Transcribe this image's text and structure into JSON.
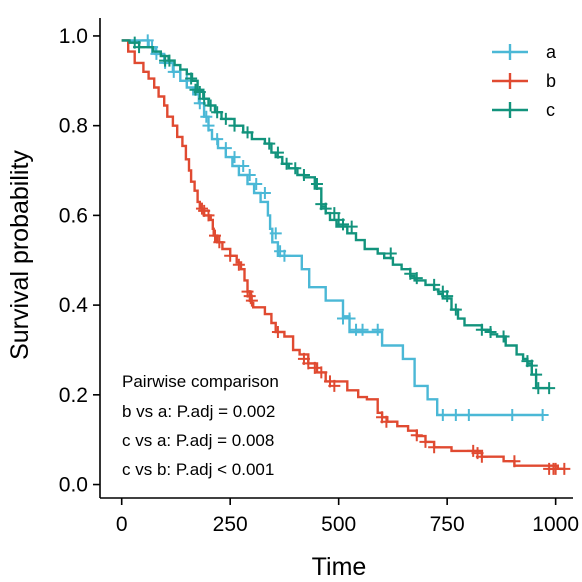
{
  "chart_data": {
    "type": "line",
    "title": "",
    "xlabel": "Time",
    "ylabel": "Survival probability",
    "xlim": [
      -50,
      1040
    ],
    "ylim": [
      -0.03,
      1.04
    ],
    "x_ticks": [
      0,
      250,
      500,
      750,
      1000
    ],
    "x_tick_labels": [
      "0",
      "250",
      "500",
      "750",
      "1000"
    ],
    "y_ticks": [
      0.0,
      0.2,
      0.4,
      0.6,
      0.8,
      1.0
    ],
    "y_tick_labels": [
      "0.0",
      "0.2",
      "0.4",
      "0.6",
      "0.8",
      "1.0"
    ],
    "grid": false,
    "legend_position": "top-right",
    "colors": {
      "a": "#4bb8d6",
      "b": "#e04a31",
      "c": "#12937c",
      "axis": "#000000"
    },
    "series": [
      {
        "name": "a",
        "color": "#4bb8d6",
        "steps": [
          [
            0,
            0.99
          ],
          [
            62,
            0.975
          ],
          [
            78,
            0.96
          ],
          [
            98,
            0.94
          ],
          [
            118,
            0.92
          ],
          [
            135,
            0.9
          ],
          [
            150,
            0.885
          ],
          [
            165,
            0.87
          ],
          [
            178,
            0.85
          ],
          [
            190,
            0.82
          ],
          [
            200,
            0.79
          ],
          [
            208,
            0.77
          ],
          [
            222,
            0.75
          ],
          [
            240,
            0.73
          ],
          [
            255,
            0.71
          ],
          [
            270,
            0.69
          ],
          [
            290,
            0.67
          ],
          [
            305,
            0.65
          ],
          [
            320,
            0.63
          ],
          [
            337,
            0.6
          ],
          [
            342,
            0.57
          ],
          [
            347,
            0.54
          ],
          [
            360,
            0.51
          ],
          [
            415,
            0.48
          ],
          [
            432,
            0.44
          ],
          [
            470,
            0.41
          ],
          [
            510,
            0.375
          ],
          [
            525,
            0.34
          ],
          [
            600,
            0.31
          ],
          [
            648,
            0.28
          ],
          [
            675,
            0.22
          ],
          [
            705,
            0.19
          ],
          [
            727,
            0.155
          ],
          [
            970,
            0.155
          ]
        ],
        "censor": [
          [
            60,
            0.99
          ],
          [
            70,
            0.975
          ],
          [
            80,
            0.96
          ],
          [
            100,
            0.94
          ],
          [
            120,
            0.92
          ],
          [
            150,
            0.9
          ],
          [
            180,
            0.85
          ],
          [
            195,
            0.82
          ],
          [
            200,
            0.8
          ],
          [
            220,
            0.77
          ],
          [
            240,
            0.75
          ],
          [
            260,
            0.73
          ],
          [
            280,
            0.71
          ],
          [
            295,
            0.69
          ],
          [
            310,
            0.67
          ],
          [
            330,
            0.65
          ],
          [
            355,
            0.56
          ],
          [
            365,
            0.52
          ],
          [
            375,
            0.51
          ],
          [
            510,
            0.37
          ],
          [
            525,
            0.37
          ],
          [
            540,
            0.345
          ],
          [
            555,
            0.345
          ],
          [
            590,
            0.345
          ],
          [
            740,
            0.155
          ],
          [
            770,
            0.155
          ],
          [
            800,
            0.155
          ],
          [
            900,
            0.155
          ],
          [
            970,
            0.155
          ]
        ]
      },
      {
        "name": "b",
        "color": "#e04a31",
        "steps": [
          [
            0,
            0.99
          ],
          [
            15,
            0.965
          ],
          [
            30,
            0.94
          ],
          [
            50,
            0.92
          ],
          [
            62,
            0.905
          ],
          [
            75,
            0.885
          ],
          [
            85,
            0.865
          ],
          [
            98,
            0.845
          ],
          [
            105,
            0.82
          ],
          [
            118,
            0.8
          ],
          [
            128,
            0.775
          ],
          [
            140,
            0.755
          ],
          [
            148,
            0.725
          ],
          [
            155,
            0.7
          ],
          [
            160,
            0.675
          ],
          [
            168,
            0.655
          ],
          [
            175,
            0.63
          ],
          [
            180,
            0.615
          ],
          [
            190,
            0.6
          ],
          [
            205,
            0.59
          ],
          [
            210,
            0.57
          ],
          [
            212,
            0.555
          ],
          [
            220,
            0.54
          ],
          [
            232,
            0.525
          ],
          [
            250,
            0.51
          ],
          [
            265,
            0.495
          ],
          [
            275,
            0.48
          ],
          [
            283,
            0.455
          ],
          [
            290,
            0.43
          ],
          [
            298,
            0.405
          ],
          [
            303,
            0.395
          ],
          [
            330,
            0.38
          ],
          [
            345,
            0.36
          ],
          [
            355,
            0.34
          ],
          [
            375,
            0.33
          ],
          [
            395,
            0.3
          ],
          [
            410,
            0.29
          ],
          [
            430,
            0.27
          ],
          [
            450,
            0.25
          ],
          [
            470,
            0.23
          ],
          [
            520,
            0.21
          ],
          [
            545,
            0.195
          ],
          [
            565,
            0.19
          ],
          [
            590,
            0.16
          ],
          [
            600,
            0.15
          ],
          [
            612,
            0.14
          ],
          [
            635,
            0.13
          ],
          [
            660,
            0.12
          ],
          [
            680,
            0.108
          ],
          [
            700,
            0.095
          ],
          [
            720,
            0.083
          ],
          [
            760,
            0.075
          ],
          [
            830,
            0.062
          ],
          [
            880,
            0.052
          ],
          [
            905,
            0.042
          ],
          [
            1005,
            0.035
          ],
          [
            1020,
            0.035
          ]
        ],
        "censor": [
          [
            185,
            0.615
          ],
          [
            190,
            0.61
          ],
          [
            200,
            0.6
          ],
          [
            215,
            0.555
          ],
          [
            225,
            0.54
          ],
          [
            250,
            0.51
          ],
          [
            270,
            0.49
          ],
          [
            290,
            0.43
          ],
          [
            295,
            0.42
          ],
          [
            300,
            0.41
          ],
          [
            360,
            0.34
          ],
          [
            420,
            0.28
          ],
          [
            430,
            0.27
          ],
          [
            445,
            0.26
          ],
          [
            460,
            0.25
          ],
          [
            480,
            0.23
          ],
          [
            490,
            0.22
          ],
          [
            600,
            0.15
          ],
          [
            610,
            0.14
          ],
          [
            680,
            0.11
          ],
          [
            700,
            0.095
          ],
          [
            720,
            0.083
          ],
          [
            810,
            0.075
          ],
          [
            820,
            0.07
          ],
          [
            830,
            0.062
          ],
          [
            905,
            0.052
          ],
          [
            985,
            0.035
          ],
          [
            995,
            0.035
          ],
          [
            1000,
            0.035
          ],
          [
            1020,
            0.035
          ]
        ]
      },
      {
        "name": "c",
        "color": "#12937c",
        "steps": [
          [
            0,
            0.99
          ],
          [
            18,
            0.985
          ],
          [
            40,
            0.975
          ],
          [
            72,
            0.965
          ],
          [
            90,
            0.955
          ],
          [
            108,
            0.945
          ],
          [
            122,
            0.935
          ],
          [
            135,
            0.925
          ],
          [
            150,
            0.915
          ],
          [
            162,
            0.9
          ],
          [
            175,
            0.88
          ],
          [
            188,
            0.86
          ],
          [
            200,
            0.845
          ],
          [
            215,
            0.83
          ],
          [
            230,
            0.815
          ],
          [
            260,
            0.8
          ],
          [
            280,
            0.785
          ],
          [
            300,
            0.77
          ],
          [
            330,
            0.76
          ],
          [
            345,
            0.74
          ],
          [
            355,
            0.73
          ],
          [
            370,
            0.715
          ],
          [
            385,
            0.705
          ],
          [
            405,
            0.69
          ],
          [
            420,
            0.685
          ],
          [
            445,
            0.66
          ],
          [
            460,
            0.62
          ],
          [
            470,
            0.605
          ],
          [
            480,
            0.59
          ],
          [
            495,
            0.575
          ],
          [
            520,
            0.56
          ],
          [
            540,
            0.545
          ],
          [
            560,
            0.525
          ],
          [
            590,
            0.515
          ],
          [
            605,
            0.505
          ],
          [
            625,
            0.49
          ],
          [
            645,
            0.48
          ],
          [
            665,
            0.465
          ],
          [
            675,
            0.455
          ],
          [
            700,
            0.445
          ],
          [
            720,
            0.435
          ],
          [
            730,
            0.425
          ],
          [
            740,
            0.415
          ],
          [
            760,
            0.39
          ],
          [
            775,
            0.37
          ],
          [
            790,
            0.355
          ],
          [
            830,
            0.345
          ],
          [
            850,
            0.335
          ],
          [
            865,
            0.33
          ],
          [
            885,
            0.31
          ],
          [
            910,
            0.29
          ],
          [
            925,
            0.28
          ],
          [
            935,
            0.27
          ],
          [
            945,
            0.245
          ],
          [
            955,
            0.215
          ],
          [
            985,
            0.215
          ]
        ],
        "censor": [
          [
            30,
            0.985
          ],
          [
            40,
            0.975
          ],
          [
            100,
            0.945
          ],
          [
            110,
            0.945
          ],
          [
            160,
            0.905
          ],
          [
            170,
            0.88
          ],
          [
            180,
            0.875
          ],
          [
            190,
            0.86
          ],
          [
            205,
            0.845
          ],
          [
            220,
            0.83
          ],
          [
            240,
            0.815
          ],
          [
            260,
            0.8
          ],
          [
            290,
            0.785
          ],
          [
            340,
            0.76
          ],
          [
            360,
            0.74
          ],
          [
            380,
            0.715
          ],
          [
            400,
            0.705
          ],
          [
            420,
            0.69
          ],
          [
            450,
            0.67
          ],
          [
            460,
            0.625
          ],
          [
            470,
            0.615
          ],
          [
            490,
            0.605
          ],
          [
            500,
            0.59
          ],
          [
            510,
            0.58
          ],
          [
            530,
            0.575
          ],
          [
            620,
            0.515
          ],
          [
            665,
            0.47
          ],
          [
            680,
            0.46
          ],
          [
            720,
            0.445
          ],
          [
            740,
            0.43
          ],
          [
            750,
            0.42
          ],
          [
            770,
            0.39
          ],
          [
            830,
            0.345
          ],
          [
            850,
            0.34
          ],
          [
            880,
            0.33
          ],
          [
            935,
            0.275
          ],
          [
            945,
            0.265
          ],
          [
            955,
            0.245
          ],
          [
            960,
            0.215
          ],
          [
            985,
            0.215
          ]
        ]
      }
    ],
    "annotations": [
      "Pairwise comparison",
      "b vs a: P.adj = 0.002",
      "c vs a: P.adj = 0.008",
      "c vs b: P.adj < 0.001"
    ]
  }
}
